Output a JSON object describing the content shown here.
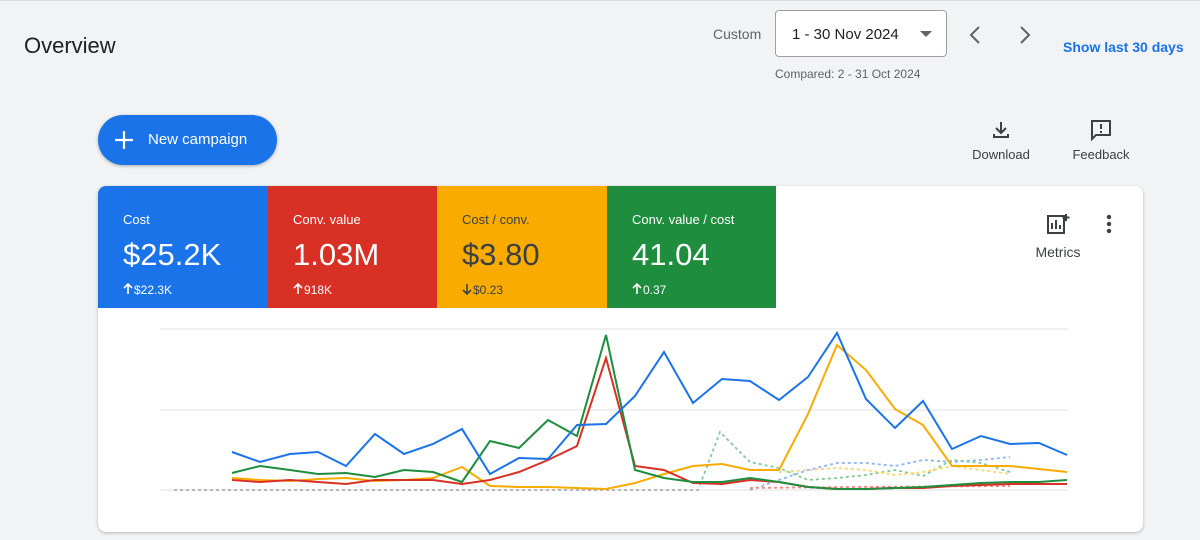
{
  "header": {
    "title": "Overview"
  },
  "date_range": {
    "label": "Custom",
    "value": "1 - 30 Nov 2024",
    "compared": "Compared: 2 - 31 Oct 2024",
    "show_last": "Show last 30 days"
  },
  "actions": {
    "new_campaign": "New campaign",
    "download": "Download",
    "feedback": "Feedback",
    "metrics": "Metrics"
  },
  "scorecards": [
    {
      "label": "Cost",
      "value": "$25.2K",
      "delta": "$22.3K"
    },
    {
      "label": "Conv. value",
      "value": "1.03M",
      "delta": "918K"
    },
    {
      "label": "Cost / conv.",
      "value": "$3.80",
      "delta": "$0.23"
    },
    {
      "label": "Conv. value / cost",
      "value": "41.04",
      "delta": "0.37"
    }
  ]
}
